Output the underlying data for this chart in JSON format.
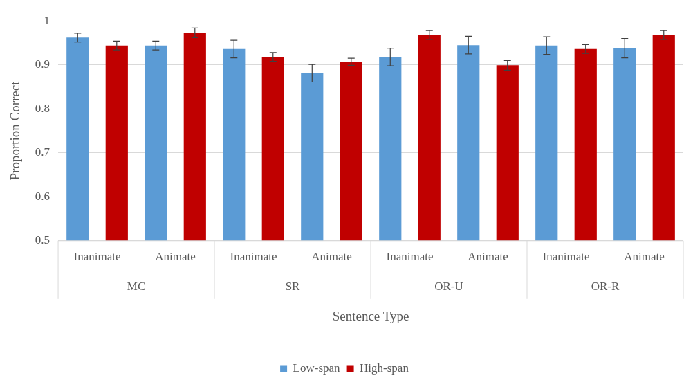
{
  "chart_data": {
    "type": "bar",
    "xlabel": "Sentence Type",
    "ylabel": "Proportion Correct",
    "categories": [
      "Inanimate",
      "Animate",
      "Inanimate",
      "Animate",
      "Inanimate",
      "Animate",
      "Inanimate",
      "Animate"
    ],
    "annotations": [
      "MC",
      "SR",
      "OR-U",
      "OR-R"
    ],
    "series": [
      {
        "name": "Low-span",
        "color": "#5b9bd5",
        "values": [
          0.962,
          0.944,
          0.936,
          0.881,
          0.918,
          0.945,
          0.944,
          0.938
        ],
        "errors": [
          0.01,
          0.01,
          0.02,
          0.02,
          0.02,
          0.02,
          0.02,
          0.022
        ]
      },
      {
        "name": "High-span",
        "color": "#c00000",
        "values": [
          0.944,
          0.973,
          0.918,
          0.907,
          0.968,
          0.899,
          0.936,
          0.968
        ],
        "errors": [
          0.01,
          0.011,
          0.01,
          0.008,
          0.01,
          0.011,
          0.01,
          0.01
        ]
      }
    ],
    "ylim": [
      0.5,
      1
    ],
    "yticks": [
      0.5,
      0.6,
      0.7,
      0.8,
      0.9,
      1
    ],
    "grid": "y",
    "legend": "bottom"
  }
}
